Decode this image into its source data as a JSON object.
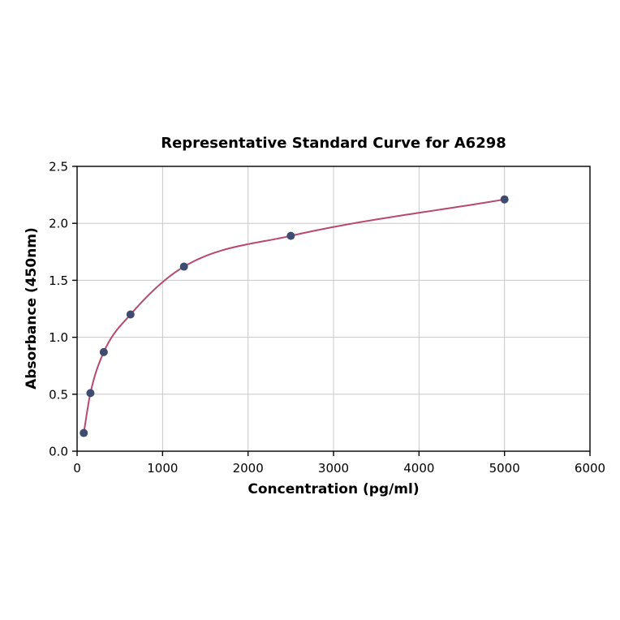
{
  "page": {
    "background": "#ffffff"
  },
  "chart_data": {
    "type": "scatter",
    "title": "Representative Standard Curve for A6298",
    "xlabel": "Concentration (pg/ml)",
    "ylabel": "Absorbance (450nm)",
    "xlim": [
      0,
      6000
    ],
    "ylim": [
      0,
      2.5
    ],
    "x_ticks": [
      0,
      1000,
      2000,
      3000,
      4000,
      5000,
      6000
    ],
    "x_tick_labels": [
      "0",
      "1000",
      "2000",
      "3000",
      "4000",
      "5000",
      "6000"
    ],
    "y_ticks": [
      0,
      0.5,
      1,
      1.5,
      2,
      2.5
    ],
    "y_tick_labels": [
      "0.0",
      "0.5",
      "1.0",
      "1.5",
      "2.0",
      "2.5"
    ],
    "grid": true,
    "legend_position": "none",
    "grid_color": "#c8c8c8",
    "axis_color": "#000000",
    "series": [
      {
        "name": "fit-curve",
        "type": "line",
        "color": "#b8486d",
        "x": [
          78,
          156,
          312,
          625,
          1250,
          2500,
          5000
        ],
        "y": [
          0.16,
          0.51,
          0.87,
          1.2,
          1.62,
          1.89,
          2.21
        ]
      },
      {
        "name": "standard-points",
        "type": "scatter",
        "color": "#3d4c70",
        "x": [
          78,
          156,
          312,
          625,
          1250,
          2500,
          5000
        ],
        "y": [
          0.16,
          0.51,
          0.87,
          1.2,
          1.62,
          1.89,
          2.21
        ]
      }
    ]
  }
}
